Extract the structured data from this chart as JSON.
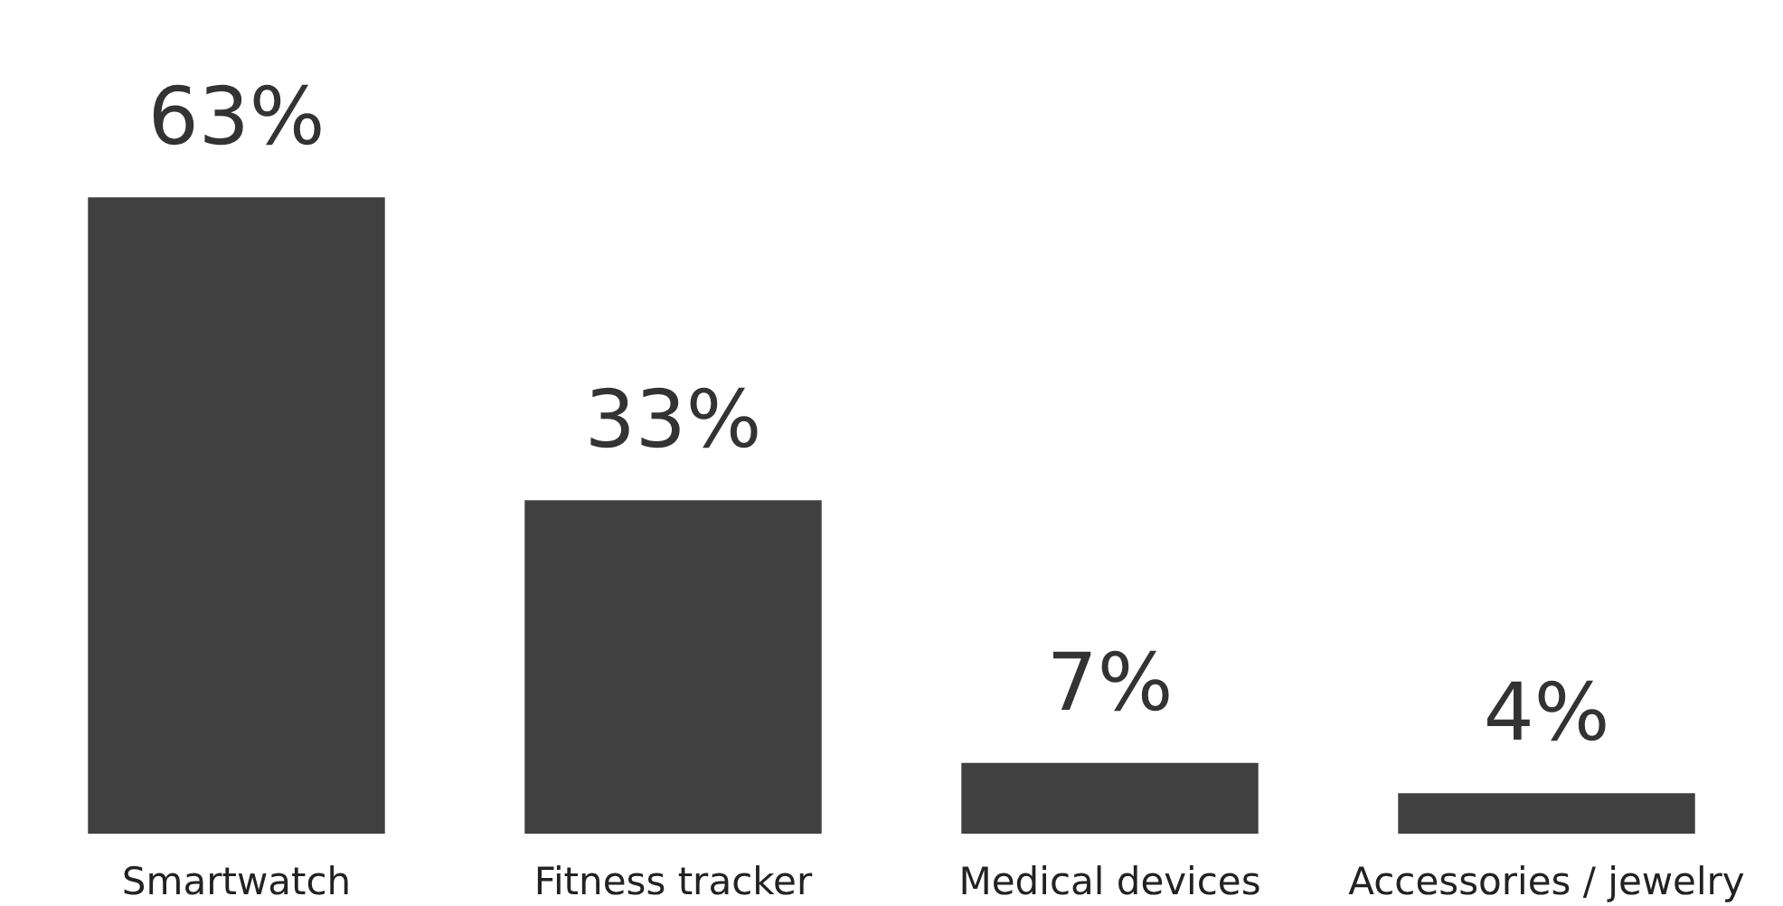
{
  "chart_data": {
    "type": "bar",
    "categories": [
      "Smartwatch",
      "Fitness tracker",
      "Medical devices",
      "Accessories / jewelry"
    ],
    "values": [
      63,
      33,
      7,
      4
    ],
    "color": "#404040",
    "value_labels": [
      "63%",
      "33%",
      "7%",
      "4%"
    ]
  }
}
